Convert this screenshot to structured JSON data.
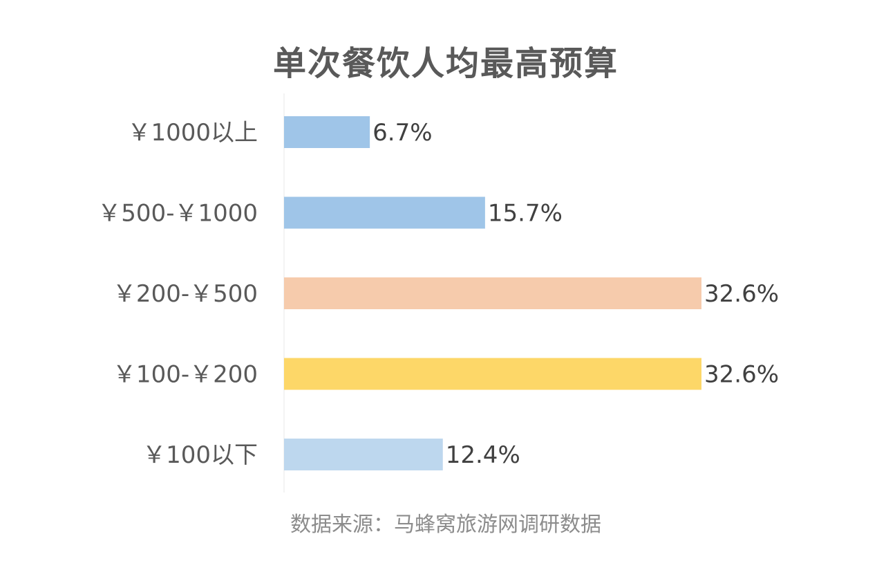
{
  "title": "单次餐饮人均最高预算",
  "source": "数据来源：马蜂窝旅游网调研数据",
  "chart_data": {
    "type": "bar",
    "orientation": "horizontal",
    "title": "单次餐饮人均最高预算",
    "xlabel": "",
    "ylabel": "",
    "grid": false,
    "legend": "none",
    "xlim": [
      0,
      35
    ],
    "value_suffix": "%",
    "categories": [
      "￥1000以上",
      "￥500-￥1000",
      "￥200-￥500",
      "￥100-￥200",
      "￥100以下"
    ],
    "values": [
      6.7,
      15.7,
      32.6,
      32.6,
      12.4
    ],
    "value_labels": [
      "6.7%",
      "15.7%",
      "32.6%",
      "32.6%",
      "12.4%"
    ],
    "colors": [
      "#9fc5e8",
      "#9fc5e8",
      "#f6cbac",
      "#fdd768",
      "#bdd7ee"
    ]
  }
}
